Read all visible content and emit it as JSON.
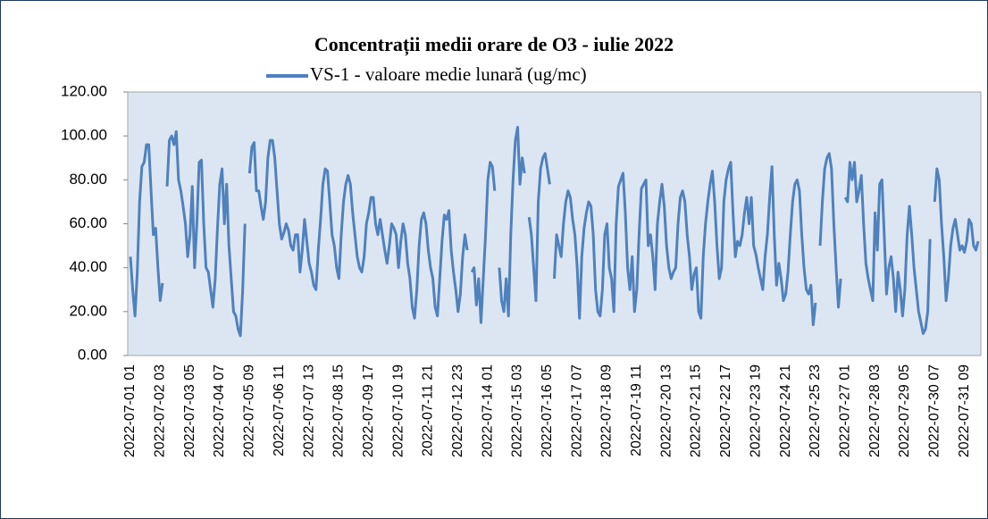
{
  "chart_data": {
    "type": "line",
    "title": "Concentrații  medii orare de O3 - iulie 2022",
    "categories": [
      "2022-07-01 01",
      null,
      null,
      null,
      null,
      null,
      null,
      null,
      null,
      null,
      null,
      null,
      null,
      "2022-07-02 03",
      null,
      null,
      null,
      null,
      null,
      null,
      null,
      null,
      null,
      null,
      null,
      null,
      "2022-07-03 05",
      null,
      null,
      null,
      null,
      null,
      null,
      null,
      null,
      null,
      null,
      null,
      null,
      "2022-07-04 07",
      null,
      null,
      null,
      null,
      null,
      null,
      null,
      null,
      null,
      null,
      null,
      null,
      "2022-07-05 09",
      null,
      null,
      null,
      null,
      null,
      null,
      null,
      null,
      null,
      null,
      null,
      null,
      "2022-07-06 11",
      null,
      null,
      null,
      null,
      null,
      null,
      null,
      null,
      null,
      null,
      null,
      null,
      "2022-07-07 13",
      null,
      null,
      null,
      null,
      null,
      null,
      null,
      null,
      null,
      null,
      null,
      null,
      "2022-07-08 15",
      null,
      null,
      null,
      null,
      null,
      null,
      null,
      null,
      null,
      null,
      null,
      null,
      "2022-07-09 17",
      null,
      null,
      null,
      null,
      null,
      null,
      null,
      null,
      null,
      null,
      null,
      null,
      "2022-07-10 19",
      null,
      null,
      null,
      null,
      null,
      null,
      null,
      null,
      null,
      null,
      null,
      null,
      "2022-07-11 21",
      null,
      null,
      null,
      null,
      null,
      null,
      null,
      null,
      null,
      null,
      null,
      null,
      "2022-07-12 23",
      null,
      null,
      null,
      null,
      null,
      null,
      null,
      null,
      null,
      null,
      null,
      null,
      "2022-07-14 01",
      null,
      null,
      null,
      null,
      null,
      null,
      null,
      null,
      null,
      null,
      null,
      null,
      "2022-07-15 03",
      null,
      null,
      null,
      null,
      null,
      null,
      null,
      null,
      null,
      null,
      null,
      null,
      "2022-07-16 05",
      null,
      null,
      null,
      null,
      null,
      null,
      null,
      null,
      null,
      null,
      null,
      null,
      "2022-07-17 07",
      null,
      null,
      null,
      null,
      null,
      null,
      null,
      null,
      null,
      null,
      null,
      null,
      "2022-07-18 09",
      null,
      null,
      null,
      null,
      null,
      null,
      null,
      null,
      null,
      null,
      null,
      null,
      "2022-07-19 11",
      null,
      null,
      null,
      null,
      null,
      null,
      null,
      null,
      null,
      null,
      null,
      null,
      "2022-07-20 13",
      null,
      null,
      null,
      null,
      null,
      null,
      null,
      null,
      null,
      null,
      null,
      null,
      "2022-07-21 15",
      null,
      null,
      null,
      null,
      null,
      null,
      null,
      null,
      null,
      null,
      null,
      null,
      "2022-07-22 17",
      null,
      null,
      null,
      null,
      null,
      null,
      null,
      null,
      null,
      null,
      null,
      null,
      "2022-07-23 19",
      null,
      null,
      null,
      null,
      null,
      null,
      null,
      null,
      null,
      null,
      null,
      null,
      "2022-07-24 21",
      null,
      null,
      null,
      null,
      null,
      null,
      null,
      null,
      null,
      null,
      null,
      null,
      "2022-07-25 23",
      null,
      null,
      null,
      null,
      null,
      null,
      null,
      null,
      null,
      null,
      null,
      null,
      "2022-07-27 01",
      null,
      null,
      null,
      null,
      null,
      null,
      null,
      null,
      null,
      null,
      null,
      null,
      "2022-07-28 03",
      null,
      null,
      null,
      null,
      null,
      null,
      null,
      null,
      null,
      null,
      null,
      null,
      "2022-07-29 05",
      null,
      null,
      null,
      null,
      null,
      null,
      null,
      null,
      null,
      null,
      null,
      null,
      "2022-07-30 07",
      null,
      null,
      null,
      null,
      null,
      null,
      null,
      null,
      null,
      null,
      null,
      null,
      "2022-07-31 09",
      null,
      null,
      null,
      null,
      null,
      null
    ],
    "series": [
      {
        "name": "VS-1 - valoare medie lunară (ug/mc)",
        "color": "#4f81bd",
        "values": [
          45,
          30,
          18,
          38,
          70,
          86,
          88,
          96,
          96,
          75,
          55,
          58,
          40,
          25,
          33,
          null,
          77,
          98,
          100,
          96,
          102,
          80,
          75,
          68,
          60,
          45,
          55,
          77,
          40,
          60,
          88,
          89,
          60,
          40,
          38,
          30,
          22,
          35,
          58,
          78,
          85,
          60,
          78,
          50,
          35,
          20,
          18,
          12,
          9,
          30,
          60,
          null,
          83,
          95,
          97,
          75,
          75,
          68,
          62,
          70,
          90,
          98,
          98,
          90,
          75,
          60,
          53,
          56,
          60,
          57,
          50,
          48,
          55,
          55,
          38,
          48,
          62,
          52,
          42,
          38,
          32,
          30,
          48,
          62,
          78,
          85,
          84,
          70,
          55,
          50,
          40,
          35,
          55,
          70,
          78,
          82,
          78,
          65,
          55,
          45,
          40,
          38,
          45,
          60,
          65,
          72,
          72,
          60,
          55,
          62,
          55,
          48,
          42,
          50,
          60,
          58,
          55,
          40,
          52,
          60,
          55,
          42,
          35,
          22,
          17,
          30,
          50,
          62,
          65,
          60,
          48,
          40,
          35,
          22,
          18,
          35,
          52,
          64,
          62,
          66,
          48,
          38,
          30,
          20,
          28,
          45,
          55,
          48,
          null,
          38,
          40,
          23,
          35,
          15,
          35,
          55,
          80,
          88,
          86,
          75,
          null,
          40,
          25,
          20,
          35,
          18,
          55,
          80,
          98,
          104,
          78,
          90,
          83,
          null,
          63,
          55,
          40,
          25,
          70,
          85,
          90,
          92,
          85,
          78,
          null,
          35,
          55,
          50,
          45,
          60,
          70,
          75,
          72,
          62,
          55,
          40,
          17,
          45,
          58,
          65,
          70,
          68,
          55,
          30,
          20,
          18,
          30,
          55,
          60,
          40,
          35,
          20,
          60,
          77,
          80,
          83,
          65,
          40,
          30,
          45,
          20,
          30,
          55,
          76,
          78,
          80,
          50,
          55,
          45,
          30,
          60,
          70,
          78,
          68,
          50,
          40,
          35,
          38,
          40,
          60,
          72,
          75,
          70,
          55,
          45,
          30,
          37,
          40,
          20,
          17,
          45,
          60,
          70,
          78,
          84,
          70,
          50,
          35,
          40,
          70,
          80,
          85,
          88,
          65,
          45,
          52,
          50,
          55,
          65,
          72,
          60,
          72,
          50,
          46,
          40,
          35,
          30,
          45,
          55,
          72,
          86,
          55,
          32,
          42,
          35,
          25,
          28,
          38,
          55,
          70,
          78,
          80,
          75,
          55,
          40,
          30,
          28,
          32,
          14,
          24,
          null,
          50,
          70,
          85,
          90,
          92,
          85,
          60,
          40,
          22,
          35,
          null,
          72,
          70,
          88,
          80,
          88,
          70,
          75,
          82,
          60,
          42,
          35,
          30,
          25,
          65,
          48,
          78,
          80,
          55,
          28,
          40,
          45,
          35,
          20,
          38,
          30,
          18,
          30,
          55,
          68,
          55,
          40,
          30,
          20,
          15,
          10,
          12,
          20,
          53,
          null,
          70,
          85,
          80,
          60,
          45,
          25,
          35,
          50,
          58,
          62,
          55,
          48,
          50,
          47,
          52,
          62,
          60,
          50,
          48,
          52
        ]
      }
    ],
    "ylim": [
      0,
      120
    ],
    "yticks": [
      {
        "value": 0,
        "label": "0.00"
      },
      {
        "value": 20,
        "label": "20.00"
      },
      {
        "value": 40,
        "label": "40.00"
      },
      {
        "value": 60,
        "label": "60.00"
      },
      {
        "value": 80,
        "label": "80.00"
      },
      {
        "value": 100,
        "label": "100.00"
      },
      {
        "value": 120,
        "label": "120.00"
      }
    ],
    "grid": false,
    "legend": "top"
  }
}
